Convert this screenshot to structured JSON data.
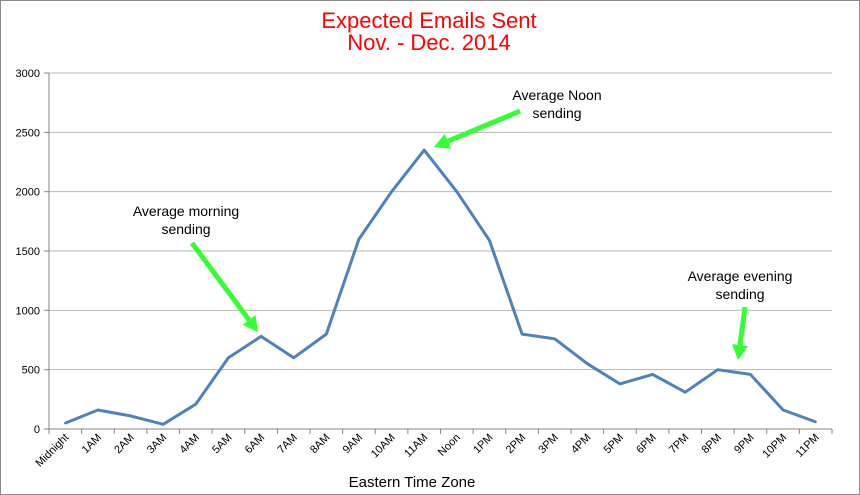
{
  "chart_data": {
    "type": "line",
    "title_line1": "Expected Emails Sent",
    "title_line2": "Nov. - Dec. 2014",
    "xlabel": "Eastern Time Zone",
    "ylabel": "",
    "ylim": [
      0,
      3000
    ],
    "yticks": [
      0,
      500,
      1000,
      1500,
      2000,
      2500,
      3000
    ],
    "categories": [
      "Midnight",
      "1AM",
      "2AM",
      "3AM",
      "4AM",
      "5AM",
      "6AM",
      "7AM",
      "8AM",
      "9AM",
      "10AM",
      "11AM",
      "Noon",
      "1PM",
      "2PM",
      "3PM",
      "4PM",
      "5PM",
      "6PM",
      "7PM",
      "8PM",
      "9PM",
      "10PM",
      "11PM"
    ],
    "series": [
      {
        "values": [
          50,
          160,
          110,
          40,
          210,
          600,
          780,
          600,
          800,
          1600,
          2000,
          2350,
          2000,
          1590,
          800,
          760,
          550,
          380,
          460,
          310,
          500,
          460,
          160,
          60
        ]
      }
    ],
    "grid": true,
    "legend": "none",
    "colors": {
      "line": "#4f81bd",
      "arrow": "#33ff33",
      "title": "#ff0000",
      "grid": "#b7b7b7"
    },
    "annotations": [
      {
        "line1": "Average morning",
        "line2": "sending",
        "target_index": 6
      },
      {
        "line1": "Average Noon",
        "line2": "sending",
        "target_index": 11
      },
      {
        "line1": "Average evening",
        "line2": "sending",
        "target_index": 20
      }
    ]
  }
}
